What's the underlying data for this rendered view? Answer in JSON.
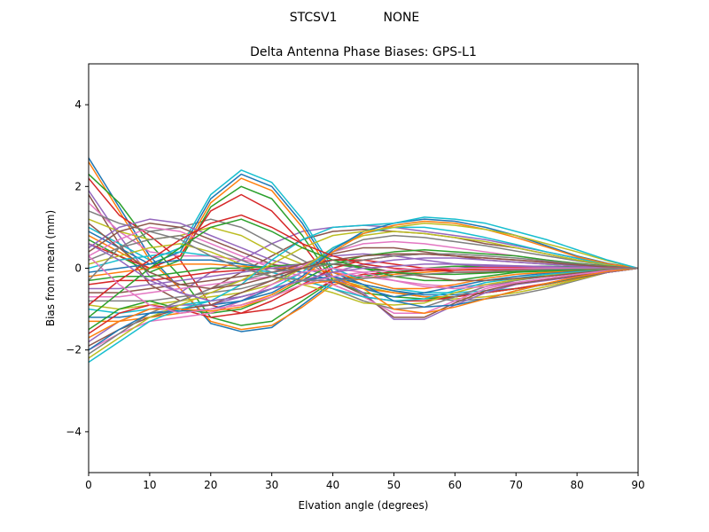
{
  "figure": {
    "suptitle_left": "STCSV1",
    "suptitle_right": "NONE"
  },
  "chart_data": {
    "type": "line",
    "title": "Delta Antenna Phase Biases: GPS-L1",
    "xlabel": "Elvation angle (degrees)",
    "ylabel": "Bias from mean (mm)",
    "xlim": [
      0,
      90
    ],
    "ylim": [
      -5,
      5
    ],
    "xticks": [
      0,
      10,
      20,
      30,
      40,
      50,
      60,
      70,
      80,
      90
    ],
    "yticks": [
      -4,
      -2,
      0,
      2,
      4
    ],
    "xtick_labels": [
      "0",
      "10",
      "20",
      "30",
      "40",
      "50",
      "60",
      "70",
      "80",
      "90"
    ],
    "ytick_labels": [
      "−4",
      "−2",
      "0",
      "2",
      "4"
    ],
    "grid": false,
    "legend": "none",
    "colors": [
      "#1f77b4",
      "#ff7f0e",
      "#2ca02c",
      "#d62728",
      "#9467bd",
      "#8c564b",
      "#e377c2",
      "#7f7f7f",
      "#bcbd22",
      "#17becf"
    ],
    "x": [
      0,
      5,
      10,
      15,
      20,
      25,
      30,
      35,
      40,
      45,
      50,
      55,
      60,
      65,
      70,
      75,
      80,
      85,
      90
    ],
    "series": [
      {
        "values": [
          2.7,
          1.5,
          0.3,
          -0.5,
          -1.35,
          -1.55,
          -1.45,
          -0.9,
          -0.35,
          -0.2,
          -0.1,
          -0.05,
          0.0,
          0.05,
          0.05,
          0.05,
          0.03,
          0.01,
          0.0
        ]
      },
      {
        "values": [
          2.6,
          1.4,
          0.2,
          -0.5,
          -1.3,
          -1.5,
          -1.4,
          -0.95,
          -0.4,
          -0.25,
          -0.15,
          -0.1,
          -0.05,
          0.0,
          0.02,
          0.02,
          0.02,
          0.01,
          0.0
        ]
      },
      {
        "values": [
          2.3,
          1.6,
          0.6,
          -0.2,
          -1.2,
          -1.4,
          -1.3,
          -0.8,
          -0.3,
          -0.2,
          -0.1,
          0.0,
          0.05,
          0.05,
          0.05,
          0.05,
          0.03,
          0.01,
          0.0
        ]
      },
      {
        "values": [
          2.2,
          1.3,
          0.8,
          0.2,
          -0.9,
          -1.1,
          -1.0,
          -0.7,
          -0.3,
          -0.15,
          -0.1,
          -0.05,
          0.0,
          0.02,
          0.02,
          0.02,
          0.01,
          0.0,
          0.0
        ]
      },
      {
        "values": [
          1.9,
          0.8,
          -0.2,
          -0.6,
          -0.1,
          0.2,
          0.6,
          0.9,
          1.0,
          1.05,
          1.0,
          0.9,
          0.8,
          0.7,
          0.55,
          0.4,
          0.25,
          0.1,
          0.0
        ]
      },
      {
        "values": [
          1.8,
          0.6,
          -0.4,
          -0.8,
          -0.5,
          -0.1,
          0.3,
          0.7,
          0.9,
          0.95,
          0.9,
          0.85,
          0.75,
          0.6,
          0.5,
          0.35,
          0.2,
          0.1,
          0.0
        ]
      },
      {
        "values": [
          1.6,
          0.9,
          0.4,
          0.3,
          0.3,
          0.2,
          0.1,
          0.0,
          -0.1,
          -0.2,
          -0.3,
          -0.4,
          -0.45,
          -0.4,
          -0.35,
          -0.25,
          -0.15,
          -0.05,
          0.0
        ]
      },
      {
        "values": [
          1.4,
          1.1,
          0.9,
          1.0,
          1.2,
          1.0,
          0.6,
          0.2,
          -0.2,
          -0.4,
          -0.55,
          -0.7,
          -0.8,
          -0.75,
          -0.65,
          -0.5,
          -0.3,
          -0.1,
          0.0
        ]
      },
      {
        "values": [
          1.2,
          0.9,
          0.7,
          0.8,
          1.0,
          0.8,
          0.4,
          0.1,
          -0.25,
          -0.45,
          -0.6,
          -0.7,
          -0.75,
          -0.7,
          -0.6,
          -0.45,
          -0.28,
          -0.1,
          0.0
        ]
      },
      {
        "values": [
          1.0,
          0.6,
          0.2,
          0.5,
          1.8,
          2.4,
          2.1,
          1.2,
          0.0,
          -0.3,
          -0.5,
          -0.6,
          -0.6,
          -0.55,
          -0.5,
          -0.4,
          -0.25,
          -0.1,
          0.0
        ]
      },
      {
        "values": [
          0.9,
          0.5,
          0.1,
          0.4,
          1.7,
          2.3,
          2.0,
          1.1,
          -0.1,
          -0.4,
          -0.55,
          -0.65,
          -0.65,
          -0.6,
          -0.5,
          -0.4,
          -0.25,
          -0.1,
          0.0
        ]
      },
      {
        "values": [
          0.8,
          0.4,
          0.0,
          0.3,
          1.6,
          2.2,
          1.9,
          1.0,
          -0.2,
          -0.5,
          -0.6,
          -0.7,
          -0.7,
          -0.6,
          -0.5,
          -0.4,
          -0.25,
          -0.1,
          0.0
        ]
      },
      {
        "values": [
          0.7,
          0.3,
          -0.1,
          0.2,
          1.5,
          2.0,
          1.7,
          0.8,
          -0.3,
          -0.6,
          -0.7,
          -0.75,
          -0.7,
          -0.6,
          -0.5,
          -0.38,
          -0.23,
          -0.1,
          0.0
        ]
      },
      {
        "values": [
          0.6,
          0.3,
          0.0,
          0.3,
          1.4,
          1.8,
          1.4,
          0.6,
          -0.4,
          -0.7,
          -0.8,
          -0.8,
          -0.7,
          -0.6,
          -0.5,
          -0.37,
          -0.22,
          -0.1,
          0.0
        ]
      },
      {
        "values": [
          0.5,
          1.0,
          1.2,
          1.1,
          0.8,
          0.5,
          0.2,
          0.0,
          -0.2,
          -0.6,
          -1.25,
          -1.25,
          -0.9,
          -0.6,
          -0.4,
          -0.3,
          -0.2,
          -0.1,
          0.0
        ]
      },
      {
        "values": [
          0.4,
          0.9,
          1.1,
          1.0,
          0.7,
          0.4,
          0.1,
          -0.1,
          -0.3,
          -0.65,
          -1.2,
          -1.2,
          -0.85,
          -0.55,
          -0.38,
          -0.28,
          -0.18,
          -0.08,
          0.0
        ]
      },
      {
        "values": [
          0.3,
          0.7,
          1.0,
          0.9,
          0.6,
          0.3,
          0.0,
          -0.2,
          -0.4,
          -0.7,
          -1.1,
          -1.1,
          -0.8,
          -0.5,
          -0.35,
          -0.25,
          -0.15,
          -0.07,
          0.0
        ]
      },
      {
        "values": [
          0.2,
          0.5,
          0.7,
          0.8,
          0.5,
          0.2,
          -0.1,
          -0.3,
          -0.5,
          -0.8,
          -1.0,
          -0.95,
          -0.7,
          -0.45,
          -0.3,
          -0.2,
          -0.12,
          -0.05,
          0.0
        ]
      },
      {
        "values": [
          0.1,
          0.3,
          0.5,
          0.6,
          0.4,
          0.1,
          -0.2,
          -0.4,
          -0.6,
          -0.85,
          -0.9,
          -0.85,
          -0.6,
          -0.4,
          -0.28,
          -0.18,
          -0.1,
          -0.04,
          0.0
        ]
      },
      {
        "values": [
          0.0,
          0.2,
          0.3,
          0.4,
          0.3,
          0.0,
          -0.1,
          -0.3,
          -0.5,
          -0.7,
          -0.8,
          -0.75,
          -0.55,
          -0.35,
          -0.25,
          -0.15,
          -0.08,
          -0.03,
          0.0
        ]
      },
      {
        "values": [
          -0.1,
          0.0,
          0.1,
          0.2,
          0.2,
          0.1,
          0.0,
          -0.1,
          -0.3,
          -0.5,
          -0.7,
          -0.6,
          -0.45,
          -0.3,
          -0.2,
          -0.12,
          -0.06,
          -0.02,
          0.0
        ]
      },
      {
        "values": [
          -0.2,
          -0.1,
          0.0,
          0.1,
          0.1,
          0.05,
          0.0,
          0.0,
          -0.1,
          -0.3,
          -0.5,
          -0.5,
          -0.4,
          -0.25,
          -0.15,
          -0.1,
          -0.05,
          -0.02,
          0.0
        ]
      },
      {
        "values": [
          -0.3,
          -0.2,
          -0.2,
          -0.1,
          0.0,
          0.0,
          0.05,
          0.1,
          0.1,
          0.0,
          -0.2,
          -0.3,
          -0.3,
          -0.2,
          -0.1,
          -0.07,
          -0.04,
          -0.01,
          0.0
        ]
      },
      {
        "values": [
          -0.4,
          -0.3,
          -0.3,
          -0.2,
          -0.1,
          -0.05,
          0.0,
          0.1,
          0.2,
          0.2,
          0.1,
          0.0,
          -0.1,
          -0.1,
          -0.05,
          -0.03,
          -0.02,
          0.0,
          0.0
        ]
      },
      {
        "values": [
          -0.5,
          -0.5,
          -0.4,
          -0.3,
          -0.2,
          -0.1,
          0.0,
          0.1,
          0.3,
          0.35,
          0.3,
          0.2,
          0.1,
          0.05,
          0.05,
          0.03,
          0.02,
          0.01,
          0.0
        ]
      },
      {
        "values": [
          -0.6,
          -0.6,
          -0.5,
          -0.4,
          -0.3,
          -0.2,
          -0.1,
          0.1,
          0.35,
          0.5,
          0.5,
          0.4,
          0.3,
          0.2,
          0.15,
          0.1,
          0.06,
          0.02,
          0.0
        ]
      },
      {
        "values": [
          -0.7,
          -0.7,
          -0.6,
          -0.5,
          -0.4,
          -0.3,
          -0.2,
          0.05,
          0.4,
          0.6,
          0.65,
          0.6,
          0.5,
          0.4,
          0.3,
          0.2,
          0.12,
          0.05,
          0.0
        ]
      },
      {
        "values": [
          -0.8,
          -0.8,
          -0.8,
          -0.7,
          -0.6,
          -0.5,
          -0.3,
          0.0,
          0.4,
          0.7,
          0.8,
          0.75,
          0.65,
          0.55,
          0.42,
          0.3,
          0.18,
          0.07,
          0.0
        ]
      },
      {
        "values": [
          -0.9,
          -1.0,
          -0.9,
          -0.8,
          -0.7,
          -0.6,
          -0.4,
          0.0,
          0.5,
          0.8,
          0.9,
          0.85,
          0.75,
          0.65,
          0.5,
          0.35,
          0.2,
          0.08,
          0.0
        ]
      },
      {
        "values": [
          -1.0,
          -1.1,
          -1.0,
          -0.9,
          -0.8,
          -0.7,
          -0.5,
          -0.1,
          0.5,
          0.85,
          1.0,
          1.0,
          0.9,
          0.75,
          0.58,
          0.4,
          0.24,
          0.1,
          0.0
        ]
      },
      {
        "values": [
          -1.2,
          -1.2,
          -1.1,
          -1.0,
          -0.9,
          -0.8,
          -0.6,
          -0.2,
          0.45,
          0.9,
          1.1,
          1.2,
          1.15,
          1.0,
          0.8,
          0.55,
          0.3,
          0.12,
          0.0
        ]
      },
      {
        "values": [
          -1.3,
          -1.3,
          -1.2,
          -1.1,
          -1.0,
          -0.9,
          -0.65,
          -0.25,
          0.4,
          0.85,
          1.05,
          1.15,
          1.1,
          0.95,
          0.75,
          0.52,
          0.28,
          0.11,
          0.0
        ]
      },
      {
        "values": [
          -1.5,
          -1.0,
          -0.8,
          -1.0,
          -1.1,
          -1.0,
          -0.7,
          -0.3,
          0.1,
          0.3,
          0.4,
          0.45,
          0.4,
          0.35,
          0.3,
          0.2,
          0.12,
          0.05,
          0.0
        ]
      },
      {
        "values": [
          -1.6,
          -1.1,
          -0.9,
          -1.0,
          -1.2,
          -1.1,
          -0.8,
          -0.4,
          0.0,
          0.2,
          0.3,
          0.35,
          0.3,
          0.25,
          0.2,
          0.15,
          0.1,
          0.04,
          0.0
        ]
      },
      {
        "values": [
          -1.8,
          -1.3,
          -1.0,
          -0.9,
          -0.9,
          -0.7,
          -0.5,
          -0.3,
          -0.1,
          0.1,
          0.2,
          0.25,
          0.25,
          0.2,
          0.15,
          0.1,
          0.06,
          0.02,
          0.0
        ]
      },
      {
        "values": [
          -1.9,
          -1.5,
          -1.2,
          -1.0,
          -0.9,
          -0.6,
          -0.3,
          0.0,
          0.1,
          0.05,
          -0.1,
          -0.2,
          -0.3,
          -0.3,
          -0.25,
          -0.2,
          -0.12,
          -0.05,
          0.0
        ]
      },
      {
        "values": [
          -2.0,
          -1.6,
          -1.3,
          -1.2,
          -1.1,
          -0.8,
          -0.4,
          -0.1,
          0.0,
          -0.1,
          -0.3,
          -0.45,
          -0.5,
          -0.45,
          -0.35,
          -0.25,
          -0.15,
          -0.06,
          0.0
        ]
      },
      {
        "values": [
          -2.1,
          -1.6,
          -1.1,
          -0.8,
          -0.5,
          -0.3,
          -0.1,
          0.0,
          0.1,
          0.2,
          0.3,
          0.35,
          0.35,
          0.3,
          0.25,
          0.18,
          0.1,
          0.04,
          0.0
        ]
      },
      {
        "values": [
          -2.2,
          -1.7,
          -1.2,
          -0.9,
          -0.6,
          -0.3,
          0.1,
          0.5,
          0.8,
          0.9,
          1.0,
          1.1,
          1.05,
          0.95,
          0.8,
          0.6,
          0.4,
          0.18,
          0.0
        ]
      },
      {
        "values": [
          -2.3,
          -1.8,
          -1.3,
          -1.0,
          -0.8,
          -0.4,
          0.2,
          0.7,
          1.0,
          1.05,
          1.1,
          1.25,
          1.2,
          1.1,
          0.9,
          0.7,
          0.45,
          0.2,
          0.0
        ]
      },
      {
        "values": [
          -2.0,
          -1.5,
          -1.1,
          -1.05,
          -1.0,
          -0.8,
          -0.5,
          -0.3,
          -0.2,
          -0.4,
          -0.8,
          -0.95,
          -0.9,
          -0.75,
          -0.55,
          -0.38,
          -0.22,
          -0.08,
          0.0
        ]
      },
      {
        "values": [
          -1.7,
          -1.3,
          -1.0,
          -1.0,
          -1.05,
          -0.95,
          -0.7,
          -0.4,
          -0.3,
          -0.5,
          -1.0,
          -1.1,
          -0.95,
          -0.75,
          -0.55,
          -0.37,
          -0.21,
          -0.08,
          0.0
        ]
      },
      {
        "values": [
          -1.2,
          -0.6,
          0.0,
          0.5,
          1.0,
          1.2,
          0.9,
          0.5,
          0.2,
          0.0,
          -0.1,
          -0.15,
          -0.15,
          -0.12,
          -0.08,
          -0.05,
          -0.03,
          -0.01,
          0.0
        ]
      },
      {
        "values": [
          -0.9,
          -0.3,
          0.2,
          0.7,
          1.1,
          1.3,
          1.0,
          0.6,
          0.3,
          0.1,
          0.0,
          -0.05,
          -0.05,
          -0.04,
          -0.03,
          -0.02,
          -0.01,
          0.0,
          0.0
        ]
      },
      {
        "values": [
          0.6,
          0.2,
          -0.3,
          -0.6,
          -0.8,
          -0.7,
          -0.5,
          -0.3,
          -0.1,
          0.0,
          0.05,
          0.1,
          0.1,
          0.08,
          0.06,
          0.04,
          0.02,
          0.01,
          0.0
        ]
      },
      {
        "values": [
          1.1,
          0.5,
          -0.1,
          -0.4,
          -0.5,
          -0.4,
          -0.2,
          0.0,
          0.2,
          0.3,
          0.35,
          0.35,
          0.3,
          0.25,
          0.2,
          0.14,
          0.08,
          0.03,
          0.0
        ]
      },
      {
        "values": [
          0.3,
          -0.4,
          -0.9,
          -1.1,
          -1.0,
          -0.9,
          -0.7,
          -0.4,
          -0.2,
          -0.1,
          -0.05,
          0.0,
          0.0,
          0.0,
          0.0,
          0.0,
          0.0,
          0.0,
          0.0
        ]
      },
      {
        "values": [
          -0.3,
          0.5,
          0.9,
          0.7,
          0.3,
          0.0,
          -0.2,
          -0.3,
          -0.3,
          -0.25,
          -0.2,
          -0.15,
          -0.1,
          -0.08,
          -0.05,
          -0.03,
          -0.02,
          -0.01,
          0.0
        ]
      }
    ]
  }
}
